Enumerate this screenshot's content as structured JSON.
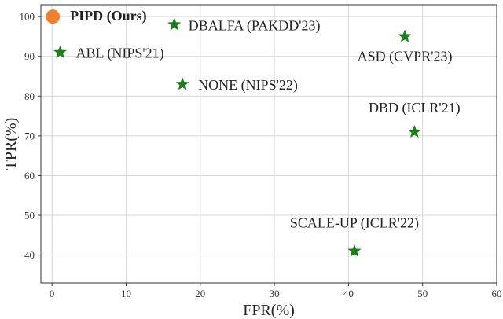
{
  "chart_data": {
    "type": "scatter",
    "title": "",
    "xlabel": "FPR(%)",
    "ylabel": "TPR(%)",
    "xlim": [
      -1.5,
      60
    ],
    "ylim": [
      33,
      103
    ],
    "xticks": [
      0,
      10,
      20,
      30,
      40,
      50,
      60
    ],
    "yticks": [
      40,
      50,
      60,
      70,
      80,
      90,
      100
    ],
    "grid": true,
    "points": [
      {
        "label": "PIPD (Ours)",
        "x": 0.1,
        "y": 100,
        "marker": "circle",
        "color": "#f08030",
        "bold": true
      },
      {
        "label": "DBALFA (PAKDD'23)",
        "x": 16.5,
        "y": 98,
        "marker": "star",
        "color": "#1a7f1a",
        "bold": false
      },
      {
        "label": "ABL (NIPS'21)",
        "x": 1.1,
        "y": 91,
        "marker": "star",
        "color": "#1a7f1a",
        "bold": false
      },
      {
        "label": "ASD (CVPR'23)",
        "x": 47.6,
        "y": 95,
        "marker": "star",
        "color": "#1a7f1a",
        "bold": false
      },
      {
        "label": "NONE (NIPS'22)",
        "x": 17.6,
        "y": 83,
        "marker": "star",
        "color": "#1a7f1a",
        "bold": false
      },
      {
        "label": "DBD (ICLR'21)",
        "x": 48.9,
        "y": 71,
        "marker": "star",
        "color": "#1a7f1a",
        "bold": false
      },
      {
        "label": "SCALE-UP (ICLR'22)",
        "x": 40.8,
        "y": 41,
        "marker": "star",
        "color": "#1a7f1a",
        "bold": false
      }
    ]
  }
}
